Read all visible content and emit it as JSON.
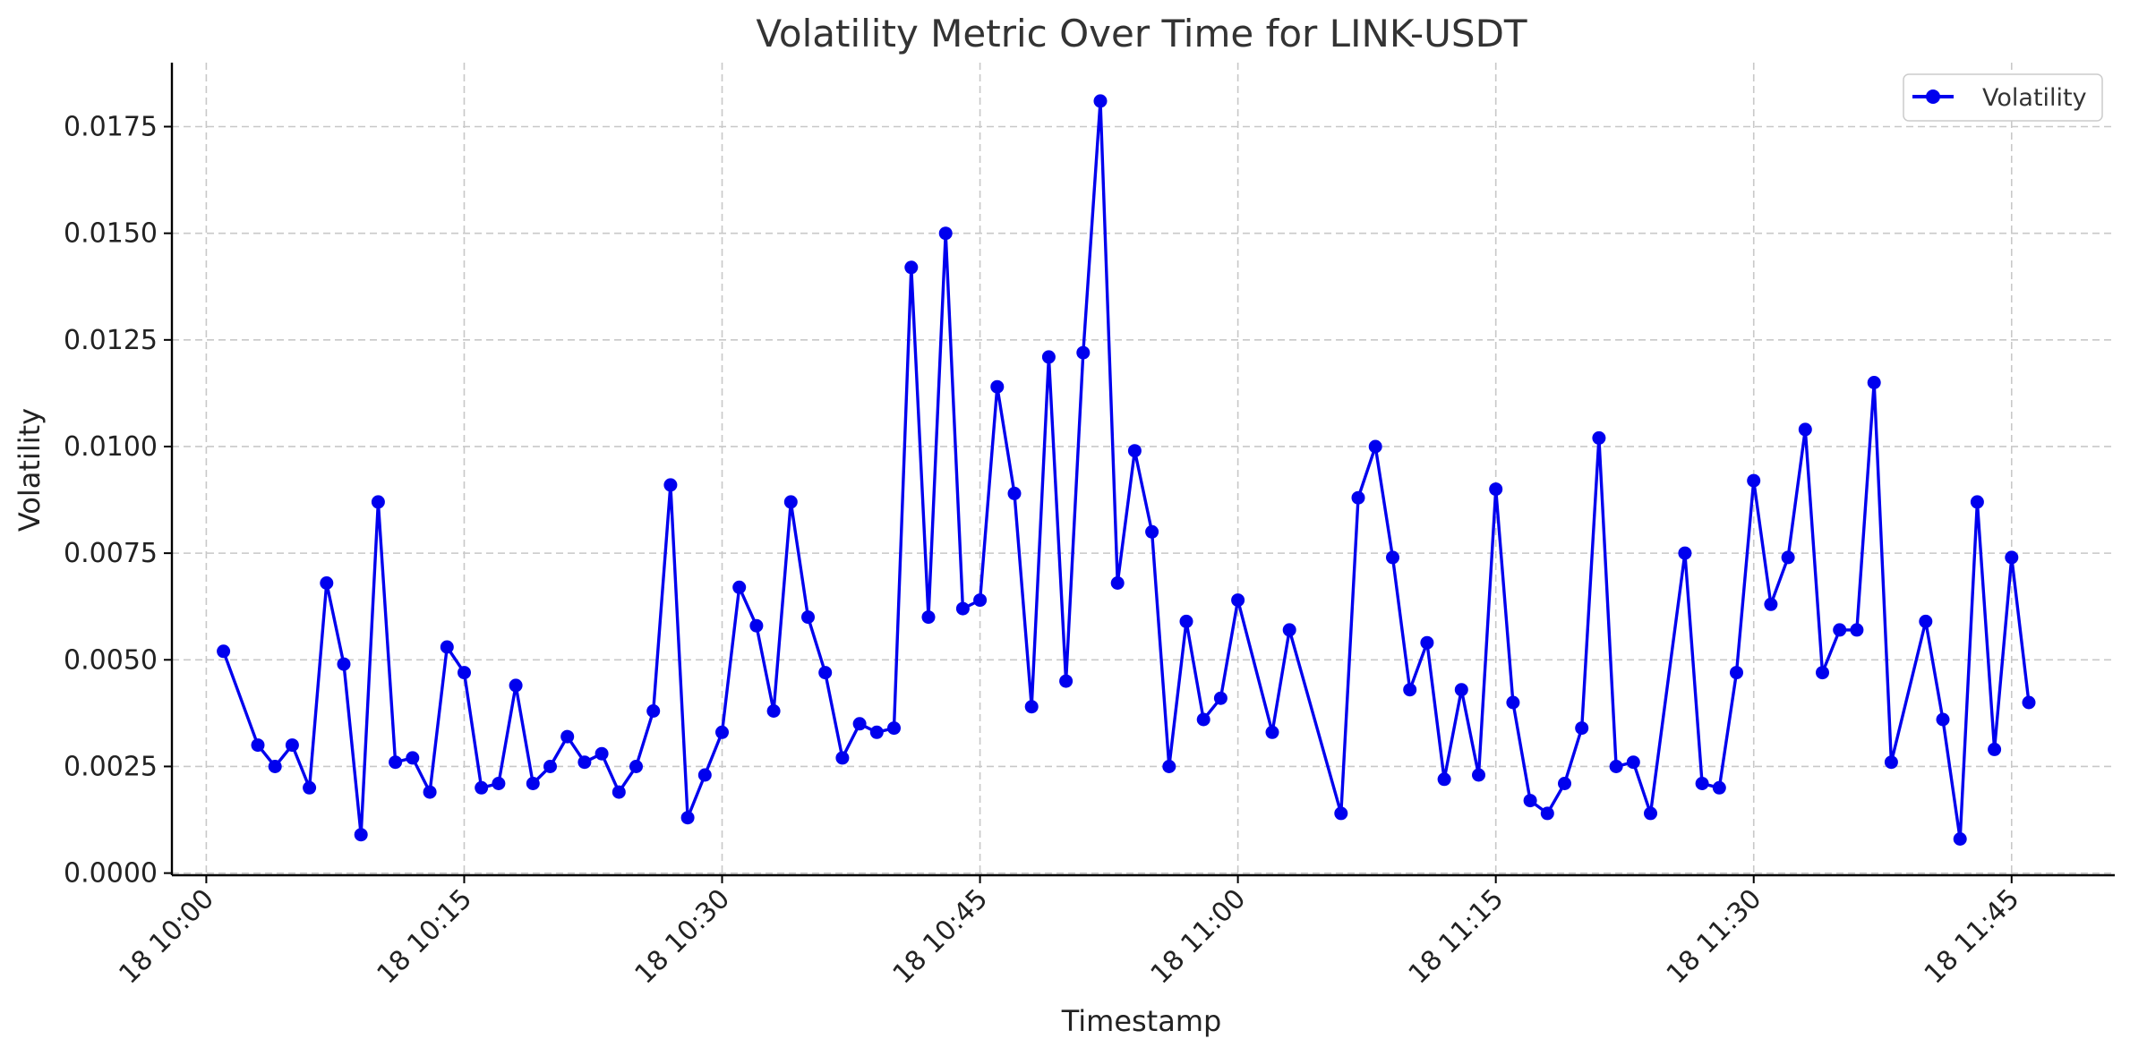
{
  "chart_data": {
    "type": "line",
    "title": "Volatility Metric Over Time for LINK-USDT",
    "xlabel": "Timestamp",
    "ylabel": "Volatility",
    "grid": true,
    "legend_position": "top-right",
    "x_ticks": [
      "18 10:00",
      "18 10:15",
      "18 10:30",
      "18 10:45",
      "18 11:00",
      "18 11:15",
      "18 11:30",
      "18 11:45"
    ],
    "y_ticks": [
      "0.0000",
      "0.0025",
      "0.0050",
      "0.0075",
      "0.0100",
      "0.0125",
      "0.0150",
      "0.0175"
    ],
    "ylim": [
      -5e-05,
      0.019
    ],
    "xlim": [
      "10:-2",
      "11:51"
    ],
    "series": [
      {
        "name": "Volatility",
        "color": "#0000ee",
        "marker": "circle",
        "x": [
          "10:01",
          "10:03",
          "10:04",
          "10:05",
          "10:06",
          "10:07",
          "10:08",
          "10:09",
          "10:10",
          "10:11",
          "10:12",
          "10:13",
          "10:14",
          "10:15",
          "10:16",
          "10:17",
          "10:18",
          "10:19",
          "10:20",
          "10:21",
          "10:22",
          "10:23",
          "10:24",
          "10:25",
          "10:26",
          "10:27",
          "10:28",
          "10:29",
          "10:30",
          "10:31",
          "10:32",
          "10:33",
          "10:34",
          "10:35",
          "10:36",
          "10:37",
          "10:38",
          "10:39",
          "10:40",
          "10:41",
          "10:42",
          "10:43",
          "10:44",
          "10:45",
          "10:46",
          "10:47",
          "10:48",
          "10:49",
          "10:50",
          "10:51",
          "10:52",
          "10:53",
          "10:54",
          "10:55",
          "10:56",
          "10:57",
          "10:58",
          "10:59",
          "11:00",
          "11:02",
          "11:03",
          "11:06",
          "11:07",
          "11:08",
          "11:09",
          "11:10",
          "11:11",
          "11:12",
          "11:13",
          "11:14",
          "11:15",
          "11:16",
          "11:17",
          "11:18",
          "11:19",
          "11:20",
          "11:21",
          "11:22",
          "11:23",
          "11:24",
          "11:26",
          "11:27",
          "11:28",
          "11:29",
          "11:30",
          "11:31",
          "11:32",
          "11:33",
          "11:34",
          "11:35",
          "11:36",
          "11:37",
          "11:38",
          "11:40",
          "11:41",
          "11:42",
          "11:43",
          "11:44",
          "11:45",
          "11:46"
        ],
        "values": [
          0.0052,
          0.003,
          0.0025,
          0.003,
          0.002,
          0.0068,
          0.0049,
          0.0009,
          0.0087,
          0.0026,
          0.0027,
          0.0019,
          0.0053,
          0.0047,
          0.002,
          0.0021,
          0.0044,
          0.0021,
          0.0025,
          0.0032,
          0.0026,
          0.0028,
          0.0019,
          0.0025,
          0.0038,
          0.0091,
          0.0013,
          0.0023,
          0.0033,
          0.0067,
          0.0058,
          0.0038,
          0.0087,
          0.006,
          0.0047,
          0.0027,
          0.0035,
          0.0033,
          0.0034,
          0.0142,
          0.006,
          0.015,
          0.0062,
          0.0064,
          0.0114,
          0.0089,
          0.0039,
          0.0121,
          0.0045,
          0.0122,
          0.0181,
          0.0068,
          0.0099,
          0.008,
          0.0025,
          0.0059,
          0.0036,
          0.0041,
          0.0064,
          0.0033,
          0.0057,
          0.0014,
          0.0088,
          0.01,
          0.0074,
          0.0043,
          0.0054,
          0.0022,
          0.0043,
          0.0023,
          0.009,
          0.004,
          0.0017,
          0.0014,
          0.0021,
          0.0034,
          0.0102,
          0.0025,
          0.0026,
          0.0014,
          0.0075,
          0.0021,
          0.002,
          0.0047,
          0.0092,
          0.0063,
          0.0074,
          0.0104,
          0.0047,
          0.0057,
          0.0057,
          0.0115,
          0.0026,
          0.0059,
          0.0036,
          0.0008,
          0.0087,
          0.0029,
          0.0074,
          0.004
        ]
      }
    ]
  }
}
